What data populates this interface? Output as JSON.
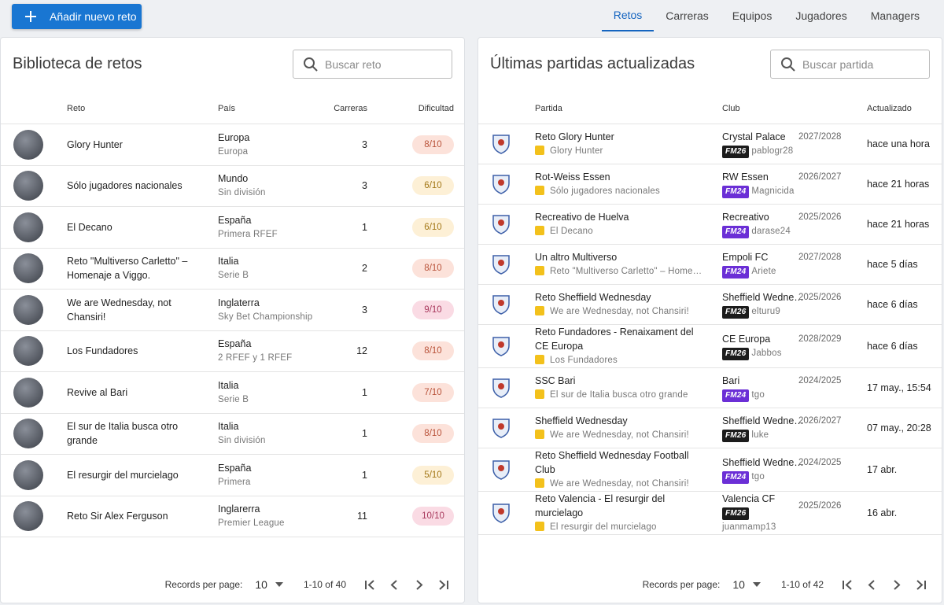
{
  "header": {
    "button": "Añadir nuevo reto",
    "tabs": [
      "Retos",
      "Carreras",
      "Equipos",
      "Jugadores",
      "Managers"
    ]
  },
  "left_panel": {
    "title": "Biblioteca de retos",
    "search_placeholder": "Buscar reto",
    "columns": [
      "Reto",
      "País",
      "Carreras",
      "Dificultad"
    ],
    "rows": [
      {
        "name": "Glory Hunter",
        "country": "Europa",
        "league": "Europa",
        "careers": 3,
        "difficulty": "8/10"
      },
      {
        "name": "Sólo jugadores nacionales",
        "country": "Mundo",
        "league": "Sin división",
        "careers": 3,
        "difficulty": "6/10"
      },
      {
        "name": "El Decano",
        "country": "España",
        "league": "Primera RFEF",
        "careers": 1,
        "difficulty": "6/10"
      },
      {
        "name": "Reto \"Multiverso Carletto\" – Homenaje a Viggo.",
        "country": "Italia",
        "league": "Serie B",
        "careers": 2,
        "difficulty": "8/10"
      },
      {
        "name": "We are Wednesday, not Chansiri!",
        "country": "Inglaterra",
        "league": "Sky Bet Championship",
        "careers": 3,
        "difficulty": "9/10"
      },
      {
        "name": "Los Fundadores",
        "country": "España",
        "league": "2 RFEF y 1 RFEF",
        "careers": 12,
        "difficulty": "8/10"
      },
      {
        "name": "Revive al Bari",
        "country": "Italia",
        "league": "Serie B",
        "careers": 1,
        "difficulty": "7/10"
      },
      {
        "name": "El sur de Italia busca otro grande",
        "country": "Italia",
        "league": "Sin división",
        "careers": 1,
        "difficulty": "8/10"
      },
      {
        "name": "El resurgir del murcielago",
        "country": "España",
        "league": "Primera",
        "careers": 1,
        "difficulty": "5/10"
      },
      {
        "name": "Reto Sir Alex Ferguson",
        "country": "Inglarerra",
        "league": "Premier League",
        "careers": 11,
        "difficulty": "10/10"
      }
    ],
    "footer": {
      "records_label": "Records per page:",
      "per_page": "10",
      "range": "1-10 of 40"
    }
  },
  "right_panel": {
    "title": "Últimas partidas actualizadas",
    "search_placeholder": "Buscar partida",
    "columns": [
      "Partida",
      "Club",
      "Actualizado"
    ],
    "rows": [
      {
        "match": "Reto Glory Hunter",
        "challenge": "Glory Hunter",
        "club": "Crystal Palace",
        "season": "2027/2028",
        "version": "FM26",
        "version_color": "#1c1c1c",
        "user": "pablogr28",
        "updated": "hace una hora"
      },
      {
        "match": "Rot-Weiss Essen",
        "challenge": "Sólo jugadores nacionales",
        "club": "RW Essen",
        "season": "2026/2027",
        "version": "FM24",
        "version_color": "#6b2fd6",
        "user": "Magnicida",
        "updated": "hace 21 horas"
      },
      {
        "match": "Recreativo de Huelva",
        "challenge": "El Decano",
        "club": "Recreativo",
        "season": "2025/2026",
        "version": "FM24",
        "version_color": "#6b2fd6",
        "user": "darase24",
        "updated": "hace 21 horas"
      },
      {
        "match": "Un altro Multiverso",
        "challenge": "Reto \"Multiverso Carletto\" – Home…",
        "club": "Empoli FC",
        "season": "2027/2028",
        "version": "FM24",
        "version_color": "#6b2fd6",
        "user": "Ariete",
        "updated": "hace 5 días"
      },
      {
        "match": "Reto Sheffield Wednesday",
        "challenge": "We are Wednesday, not Chansiri!",
        "club": "Sheffield Wedne…",
        "season": "2025/2026",
        "version": "FM26",
        "version_color": "#1c1c1c",
        "user": "elturu9",
        "updated": "hace 6 días"
      },
      {
        "match": "Reto Fundadores - Renaixament del CE Europa",
        "challenge": "Los Fundadores",
        "club": "CE Europa",
        "season": "2028/2029",
        "version": "FM26",
        "version_color": "#1c1c1c",
        "user": "Jabbos",
        "updated": "hace 6 días"
      },
      {
        "match": "SSC Bari",
        "challenge": "El sur de Italia busca otro grande",
        "club": "Bari",
        "season": "2024/2025",
        "version": "FM24",
        "version_color": "#6b2fd6",
        "user": "tgo",
        "updated": "17 may., 15:54"
      },
      {
        "match": "Sheffield Wednesday",
        "challenge": "We are Wednesday, not Chansiri!",
        "club": "Sheffield Wedne…",
        "season": "2026/2027",
        "version": "FM26",
        "version_color": "#1c1c1c",
        "user": "luke",
        "updated": "07 may., 20:28"
      },
      {
        "match": "Reto Sheffield Wednesday Football Club",
        "challenge": "We are Wednesday, not Chansiri!",
        "club": "Sheffield Wedne…",
        "season": "2024/2025",
        "version": "FM24",
        "version_color": "#6b2fd6",
        "user": "tgo",
        "updated": "17 abr."
      },
      {
        "match": "Reto Valencia - El resurgir del murcielago",
        "challenge": "El resurgir del murcielago",
        "club": "Valencia CF",
        "season": "2025/2026",
        "version": "FM26",
        "version_color": "#1c1c1c",
        "user": "juanmamp13",
        "updated": "16 abr."
      }
    ],
    "footer": {
      "records_label": "Records per page:",
      "per_page": "10",
      "range": "1-10 of 42"
    }
  }
}
